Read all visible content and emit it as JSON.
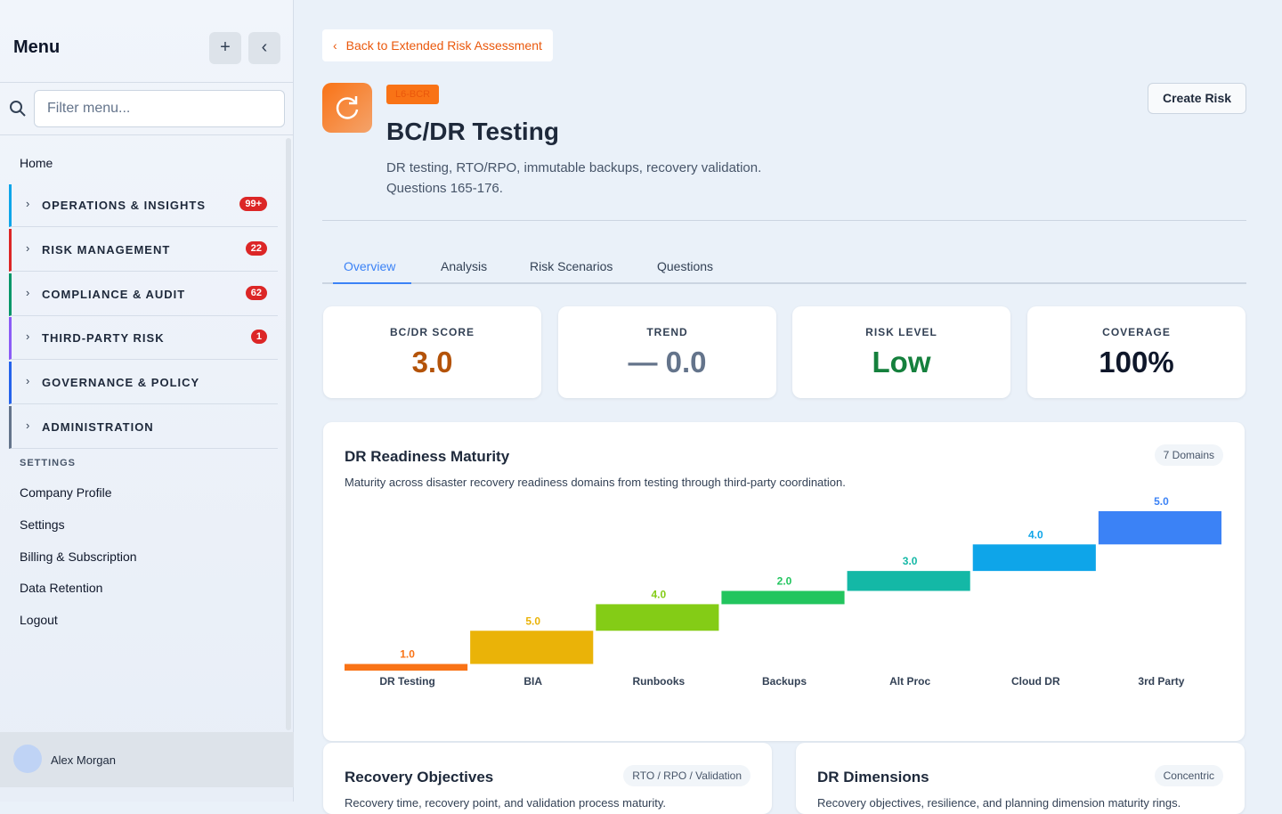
{
  "sidebar": {
    "title": "Menu",
    "filter_placeholder": "Filter menu...",
    "home": "Home",
    "groups": [
      {
        "label": "OPERATIONS & INSIGHTS",
        "badge": "99+",
        "color": "#0ea5e9"
      },
      {
        "label": "RISK MANAGEMENT",
        "badge": "22",
        "color": "#dc2626"
      },
      {
        "label": "COMPLIANCE & AUDIT",
        "badge": "62",
        "color": "#059669"
      },
      {
        "label": "THIRD-PARTY RISK",
        "badge": "1",
        "color": "#8b5cf6"
      },
      {
        "label": "GOVERNANCE & POLICY",
        "color": "#2563eb"
      },
      {
        "label": "ADMINISTRATION",
        "color": "#64748b"
      }
    ],
    "settings_heading": "SETTINGS",
    "settings_links": [
      "Company Profile",
      "Settings",
      "Billing & Subscription",
      "Data Retention",
      "Logout"
    ],
    "user": "Alex Morgan"
  },
  "header": {
    "back_link": "Back to Extended Risk Assessment",
    "code": "L6-BCR",
    "title": "BC/DR Testing",
    "description": "DR testing, RTO/RPO, immutable backups, recovery validation.",
    "questions": "Questions 165-176.",
    "create_button": "Create Risk"
  },
  "tabs": [
    "Overview",
    "Analysis",
    "Risk Scenarios",
    "Questions"
  ],
  "kpis": [
    {
      "label": "BC/DR SCORE",
      "value": "3.0",
      "color": "#b45309"
    },
    {
      "label": "TREND",
      "value": "— 0.0",
      "color": "#64748b"
    },
    {
      "label": "RISK LEVEL",
      "value": "Low",
      "color": "#15803d"
    },
    {
      "label": "COVERAGE",
      "value": "100%",
      "color": "#0f172a"
    }
  ],
  "maturity_card": {
    "title": "DR Readiness Maturity",
    "badge": "7 Domains",
    "subtitle": "Maturity across disaster recovery readiness domains from testing through third-party coordination.",
    "chart_data": {
      "type": "waterfall",
      "categories": [
        "DR Testing",
        "BIA",
        "Runbooks",
        "Backups",
        "Alt Proc",
        "Cloud DR",
        "3rd Party"
      ],
      "values": [
        1,
        5,
        4,
        2,
        3,
        4,
        5
      ],
      "value_labels": [
        "1.0",
        "5.0",
        "4.0",
        "2.0",
        "3.0",
        "4.0",
        "5.0"
      ],
      "colors": [
        "#f97316",
        "#eab308",
        "#84cc16",
        "#22c55e",
        "#14b8a6",
        "#0ea5e9",
        "#3b82f6"
      ]
    }
  },
  "bottom_cards": [
    {
      "title": "Recovery Objectives",
      "badge": "RTO / RPO / Validation",
      "subtitle": "Recovery time, recovery point, and validation process maturity."
    },
    {
      "title": "DR Dimensions",
      "badge": "Concentric",
      "subtitle": "Recovery objectives, resilience, and planning dimension maturity rings."
    }
  ]
}
